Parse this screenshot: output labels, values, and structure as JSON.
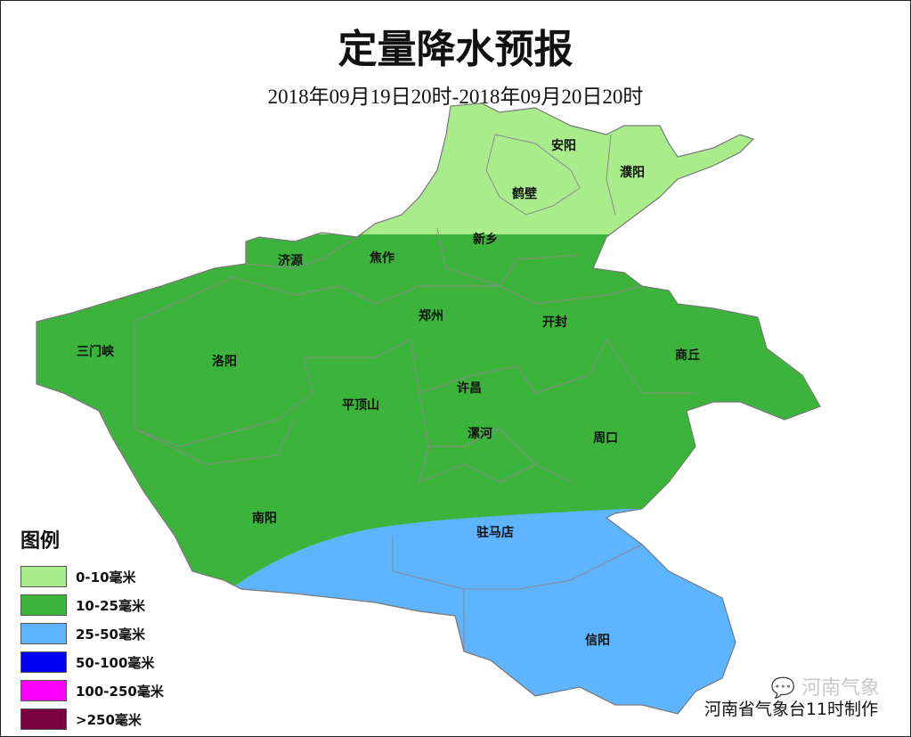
{
  "title": "定量降水预报",
  "subtitle": "2018年09月19日20时-2018年09月20日20时",
  "cities": [
    {
      "name": "安阳"
    },
    {
      "name": "濮阳"
    },
    {
      "name": "鹤壁"
    },
    {
      "name": "新乡"
    },
    {
      "name": "济源"
    },
    {
      "name": "焦作"
    },
    {
      "name": "郑州"
    },
    {
      "name": "开封"
    },
    {
      "name": "商丘"
    },
    {
      "name": "三门峡"
    },
    {
      "name": "洛阳"
    },
    {
      "name": "许昌"
    },
    {
      "name": "平顶山"
    },
    {
      "name": "漯河"
    },
    {
      "name": "周口"
    },
    {
      "name": "南阳"
    },
    {
      "name": "驻马店"
    },
    {
      "name": "信阳"
    }
  ],
  "legend": {
    "title": "图例",
    "items": [
      {
        "label": "0-10毫米",
        "color": "#a8ec8c"
      },
      {
        "label": "10-25毫米",
        "color": "#3cb43c"
      },
      {
        "label": "25-50毫米",
        "color": "#5fb4ff"
      },
      {
        "label": "50-100毫米",
        "color": "#0000f5"
      },
      {
        "label": "100-250毫米",
        "color": "#fa00fa"
      },
      {
        "label": ">250毫米",
        "color": "#7a0040"
      }
    ]
  },
  "credit": "河南省气象台11时制作",
  "watermark": "河南气象"
}
